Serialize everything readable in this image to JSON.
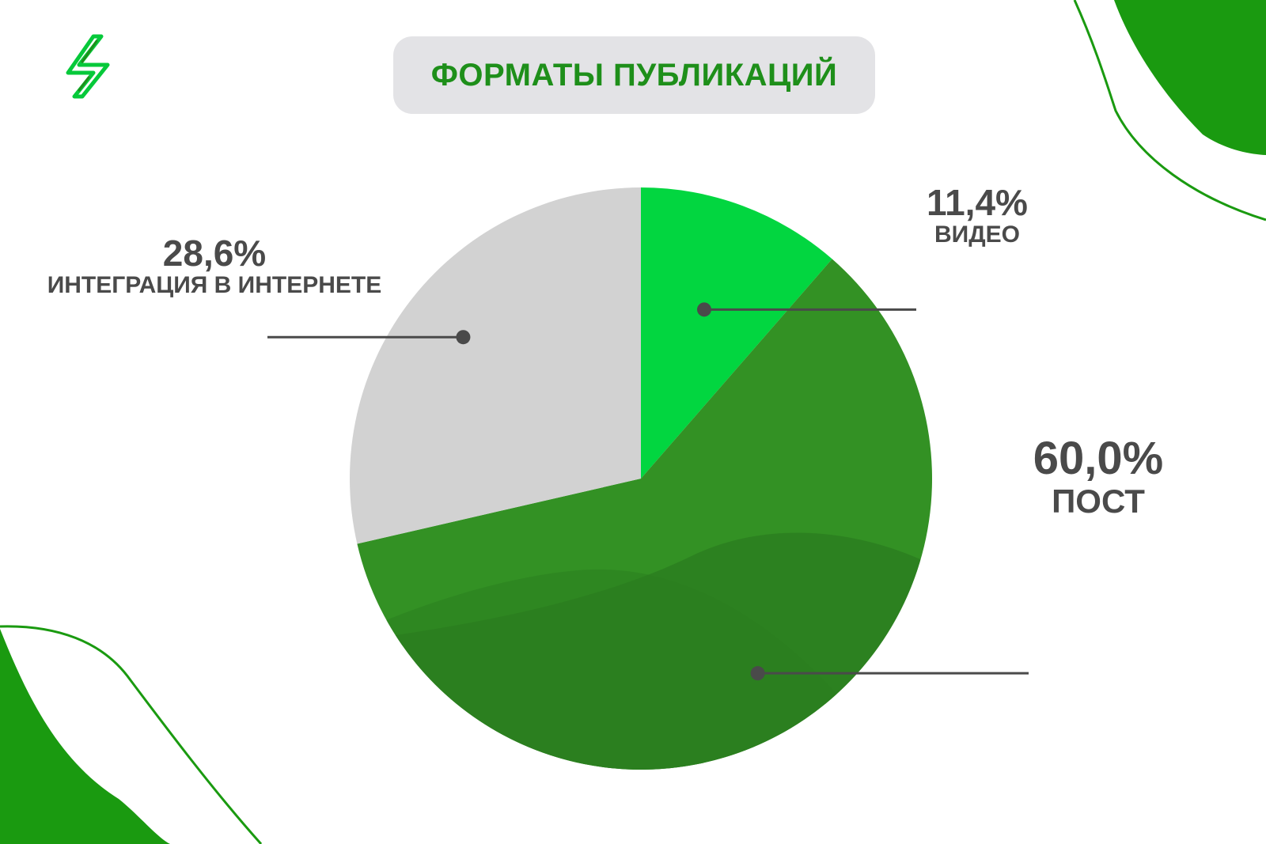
{
  "colors": {
    "accent": "#1e8f1a",
    "title_bg": "#e3e3e6",
    "video": "#02d640",
    "post": "#339124",
    "post_dark": "#2c7d1f",
    "integration": "#d2d2d2",
    "label_text": "#4a4a4a",
    "decor": "#1a9a10"
  },
  "header": {
    "logo_icon": "lightning-bolt-icon",
    "title": "ФОРМАТЫ ПУБЛИКАЦИЙ"
  },
  "chart_data": {
    "type": "pie",
    "title": "ФОРМАТЫ ПУБЛИКАЦИЙ",
    "start": "top",
    "direction": "clockwise",
    "slices": [
      {
        "label": "ВИДЕО",
        "value": 11.4,
        "value_label": "11,4%",
        "color": "#02d640"
      },
      {
        "label": "ПОСТ",
        "value": 60.0,
        "value_label": "60,0%",
        "color": "#339124"
      },
      {
        "label": "ИНТЕГРАЦИЯ В ИНТЕРНЕТЕ",
        "value": 28.6,
        "value_label": "28,6%",
        "color": "#d2d2d2"
      }
    ]
  }
}
